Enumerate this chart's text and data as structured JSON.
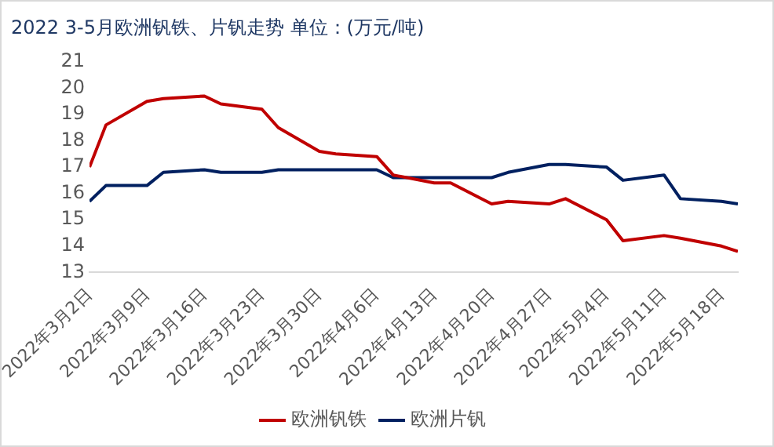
{
  "chart_data": {
    "type": "line",
    "title": "2022 3-5月欧洲钒铁、片钒走势 单位：(万元/吨)",
    "x": [
      "2022-03-02",
      "2022-03-04",
      "2022-03-09",
      "2022-03-11",
      "2022-03-16",
      "2022-03-18",
      "2022-03-23",
      "2022-03-25",
      "2022-03-30",
      "2022-04-01",
      "2022-04-06",
      "2022-04-08",
      "2022-04-13",
      "2022-04-15",
      "2022-04-20",
      "2022-04-22",
      "2022-04-27",
      "2022-04-29",
      "2022-05-04",
      "2022-05-06",
      "2022-05-11",
      "2022-05-13",
      "2022-05-18",
      "2022-05-20"
    ],
    "series": [
      {
        "name": "欧洲钒铁",
        "color": "#c00000",
        "values": [
          17.0,
          18.6,
          19.5,
          19.6,
          19.7,
          19.4,
          19.2,
          18.5,
          17.6,
          17.5,
          17.4,
          16.7,
          16.4,
          16.4,
          15.6,
          15.7,
          15.6,
          15.8,
          15.0,
          14.2,
          14.4,
          14.3,
          14.0,
          13.8
        ]
      },
      {
        "name": "欧洲片钒",
        "color": "#002060",
        "values": [
          15.7,
          16.3,
          16.3,
          16.8,
          16.9,
          16.8,
          16.8,
          16.9,
          16.9,
          16.9,
          16.9,
          16.6,
          16.6,
          16.6,
          16.6,
          16.8,
          17.1,
          17.1,
          17.0,
          16.5,
          16.7,
          15.8,
          15.7,
          15.6
        ]
      }
    ],
    "xlim": [
      "2022-03-02",
      "2022-05-20"
    ],
    "xticks": [
      {
        "value": "2022-03-02",
        "label": "2022年3月2日"
      },
      {
        "value": "2022-03-09",
        "label": "2022年3月9日"
      },
      {
        "value": "2022-03-16",
        "label": "2022年3月16日"
      },
      {
        "value": "2022-03-23",
        "label": "2022年3月23日"
      },
      {
        "value": "2022-03-30",
        "label": "2022年3月30日"
      },
      {
        "value": "2022-04-06",
        "label": "2022年4月6日"
      },
      {
        "value": "2022-04-13",
        "label": "2022年4月13日"
      },
      {
        "value": "2022-04-20",
        "label": "2022年4月20日"
      },
      {
        "value": "2022-04-27",
        "label": "2022年4月27日"
      },
      {
        "value": "2022-05-04",
        "label": "2022年5月4日"
      },
      {
        "value": "2022-05-11",
        "label": "2022年5月11日"
      },
      {
        "value": "2022-05-18",
        "label": "2022年5月18日"
      }
    ],
    "ylim": [
      13,
      21
    ],
    "yticks": [
      13,
      14,
      15,
      16,
      17,
      18,
      19,
      20,
      21
    ],
    "grid": false,
    "legend": "bottom",
    "marker": "none",
    "line_style": "solid"
  }
}
